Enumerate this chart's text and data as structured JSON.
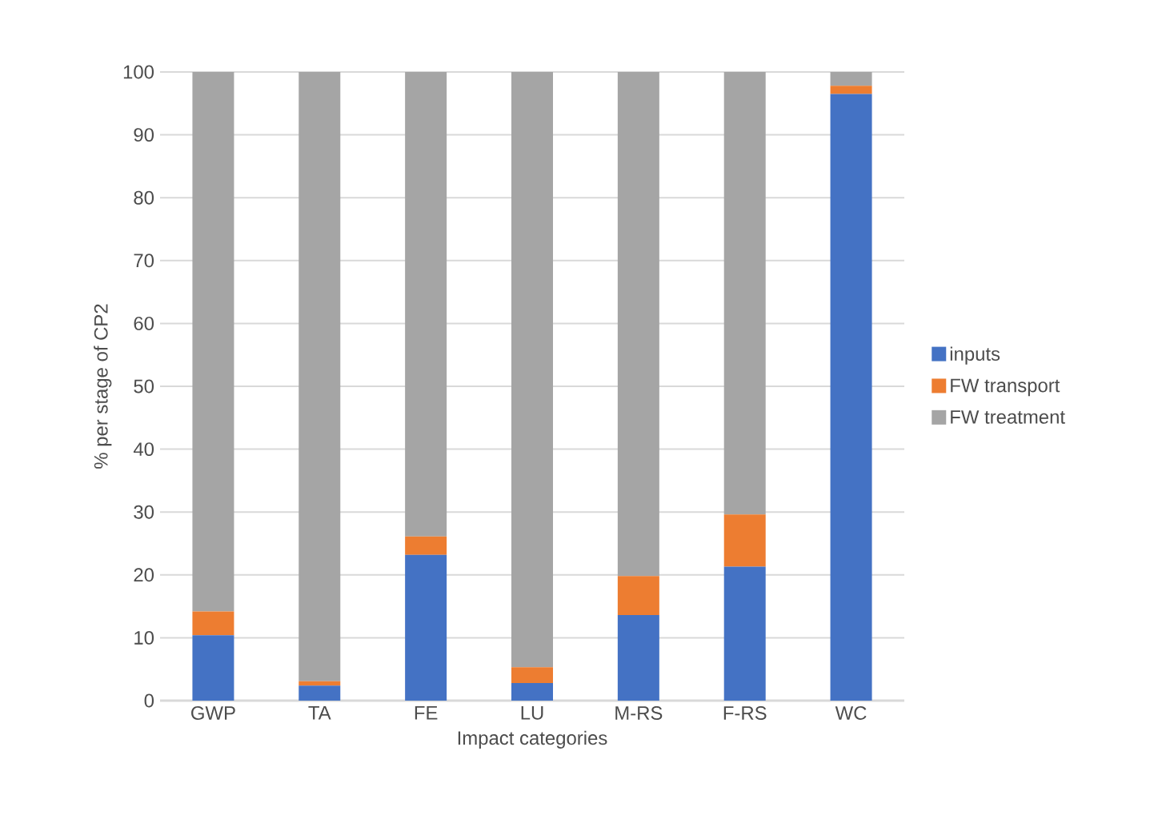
{
  "chart_data": {
    "type": "bar",
    "stacked": true,
    "xlabel": "Impact categories",
    "ylabel": "% per stage of CP2",
    "categories": [
      "GWP",
      "TA",
      "FE",
      "LU",
      "M-RS",
      "F-RS",
      "WC"
    ],
    "series": [
      {
        "name": "inputs",
        "color": "#4472c4",
        "values": [
          10.4,
          2.4,
          23.2,
          2.8,
          13.6,
          21.3,
          96.5
        ]
      },
      {
        "name": "FW transport",
        "color": "#ed7d31",
        "values": [
          3.8,
          0.7,
          2.9,
          2.5,
          6.2,
          8.3,
          1.3
        ]
      },
      {
        "name": "FW treatment",
        "color": "#a5a5a5",
        "values": [
          85.8,
          96.9,
          73.9,
          94.7,
          80.2,
          70.4,
          2.2
        ]
      }
    ],
    "ylim": [
      0,
      100
    ],
    "yticks": [
      0,
      10,
      20,
      30,
      40,
      50,
      60,
      70,
      80,
      90,
      100
    ],
    "grid": "y",
    "legend": "right"
  }
}
